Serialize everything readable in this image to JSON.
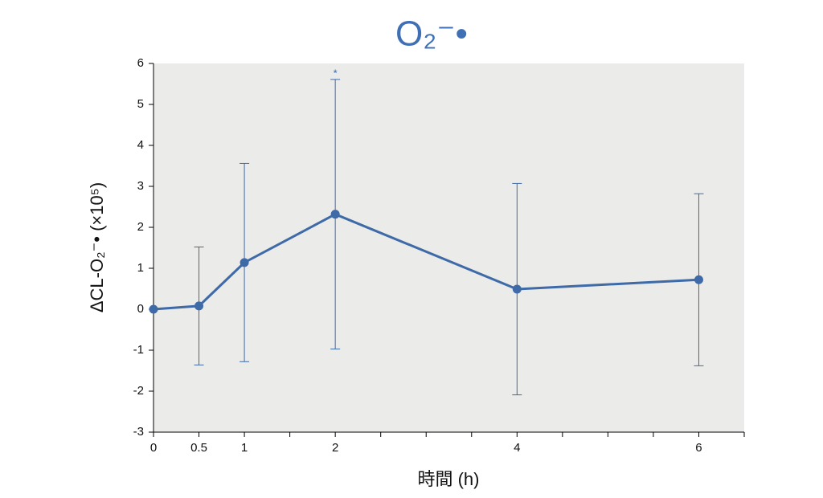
{
  "chart_data": {
    "type": "line",
    "title": "O₂⁻•",
    "ylabel": "ΔCL-O₂⁻• (×10⁵)",
    "xlabel": "時間 (h)",
    "x": [
      0,
      0.5,
      1,
      2,
      4,
      6
    ],
    "series": [
      {
        "color": "#3f6aa8",
        "values": [
          0,
          0.08,
          1.14,
          2.32,
          0.49,
          0.72
        ],
        "errors": [
          0,
          1.44,
          2.42,
          3.29,
          2.58,
          2.1
        ]
      }
    ],
    "annotations": [
      {
        "text": "*",
        "x": 2
      }
    ],
    "xlim": [
      0,
      6.5
    ],
    "xticks": [
      0,
      0.5,
      1,
      2,
      4,
      6
    ],
    "xminorticks": [
      1.5,
      2.5,
      3,
      3.5,
      4.5,
      5,
      5.5,
      6.5
    ],
    "ylim": [
      -3,
      6
    ],
    "yticks": [
      -3,
      -2,
      -1,
      0,
      1,
      2,
      3,
      4,
      5,
      6
    ],
    "background": "#ebebe9"
  }
}
